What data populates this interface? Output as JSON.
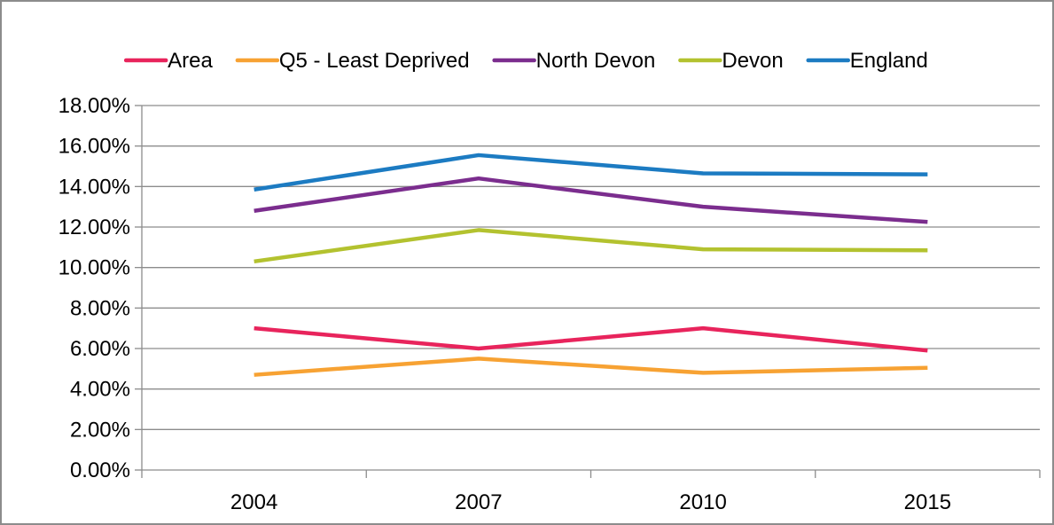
{
  "chart_data": {
    "type": "line",
    "title": "",
    "xlabel": "",
    "ylabel": "",
    "categories": [
      "2004",
      "2007",
      "2010",
      "2015"
    ],
    "y_tick_labels": [
      "0.00%",
      "2.00%",
      "4.00%",
      "6.00%",
      "8.00%",
      "10.00%",
      "12.00%",
      "14.00%",
      "16.00%",
      "18.00%"
    ],
    "ylim": [
      0,
      0.18
    ],
    "y_step": 0.02,
    "y_format": "percent_2dp",
    "grid": "horizontal",
    "legend_position": "top",
    "series": [
      {
        "name": "Area",
        "color": "#E8245C",
        "values": [
          0.07,
          0.06,
          0.07,
          0.059
        ]
      },
      {
        "name": "Q5 - Least Deprived",
        "color": "#F7A233",
        "values": [
          0.047,
          0.055,
          0.048,
          0.0505
        ]
      },
      {
        "name": "North Devon",
        "color": "#7B2D8E",
        "values": [
          0.128,
          0.144,
          0.13,
          0.1225
        ]
      },
      {
        "name": "Devon",
        "color": "#B3C22F",
        "values": [
          0.103,
          0.1185,
          0.109,
          0.1085
        ]
      },
      {
        "name": "England",
        "color": "#1C7BC2",
        "values": [
          0.1385,
          0.1555,
          0.1465,
          0.146
        ]
      }
    ]
  }
}
